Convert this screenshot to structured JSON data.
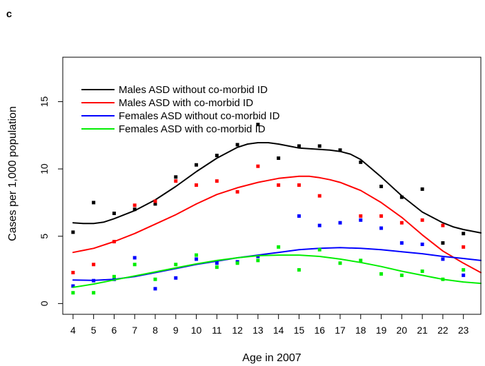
{
  "panel_label": "c",
  "chart_data": {
    "type": "scatter",
    "title": "",
    "xlabel": "Age in 2007",
    "ylabel": "Cases per 1,000 population",
    "x": [
      4,
      5,
      6,
      7,
      8,
      9,
      10,
      11,
      12,
      13,
      14,
      15,
      16,
      17,
      18,
      19,
      20,
      21,
      22,
      23
    ],
    "x_tick_labels": [
      "4",
      "5",
      "6",
      "7",
      "8",
      "9",
      "10",
      "11",
      "12",
      "13",
      "14",
      "15",
      "16",
      "17",
      "18",
      "19",
      "20",
      "21",
      "22",
      "23"
    ],
    "y_ticks": [
      0,
      5,
      10,
      15
    ],
    "y_tick_labels": [
      "0",
      "5",
      "10",
      "15"
    ],
    "xlim": [
      3.5,
      23.85
    ],
    "ylim": [
      -0.8,
      18.3
    ],
    "legend_position": "top-left",
    "grid": false,
    "series": [
      {
        "name": "Males ASD without co-morbid ID",
        "color": "#000000",
        "points": [
          5.3,
          7.5,
          6.7,
          7.0,
          7.4,
          9.4,
          10.3,
          11.0,
          11.8,
          13.3,
          10.8,
          11.7,
          11.7,
          11.4,
          10.5,
          8.7,
          7.9,
          8.5,
          4.5,
          5.2
        ],
        "smooth_x": [
          4,
          4.5,
          5,
          5.5,
          6,
          7,
          8,
          9,
          10,
          11,
          12,
          12.5,
          13,
          13.5,
          14,
          14.5,
          15,
          15.5,
          16,
          16.5,
          17,
          17.5,
          18,
          19,
          20,
          21,
          22,
          22.5,
          23,
          23.5,
          23.85
        ],
        "smooth_y": [
          6.0,
          5.95,
          5.95,
          6.05,
          6.3,
          6.9,
          7.7,
          8.7,
          9.8,
          10.8,
          11.6,
          11.85,
          11.95,
          11.95,
          11.85,
          11.7,
          11.55,
          11.5,
          11.45,
          11.4,
          11.3,
          11.1,
          10.7,
          9.4,
          8.0,
          6.8,
          6.0,
          5.7,
          5.5,
          5.35,
          5.25
        ]
      },
      {
        "name": "Males ASD with co-morbid ID",
        "color": "#ff0000",
        "points": [
          2.3,
          2.9,
          4.6,
          7.3,
          7.6,
          9.1,
          8.8,
          9.1,
          8.3,
          10.2,
          8.8,
          8.8,
          8.0,
          null,
          6.5,
          6.5,
          6.0,
          6.2,
          5.8,
          4.2
        ],
        "smooth_x": [
          4,
          5,
          6,
          7,
          8,
          9,
          10,
          11,
          12,
          13,
          14,
          15,
          15.5,
          16,
          16.5,
          17,
          18,
          19,
          20,
          21,
          22,
          23,
          23.85
        ],
        "smooth_y": [
          3.8,
          4.1,
          4.6,
          5.2,
          5.9,
          6.6,
          7.4,
          8.1,
          8.6,
          9.0,
          9.3,
          9.45,
          9.45,
          9.35,
          9.2,
          9.0,
          8.4,
          7.5,
          6.4,
          5.1,
          3.9,
          3.0,
          2.3
        ]
      },
      {
        "name": "Females ASD without co-morbid ID",
        "color": "#0000ff",
        "points": [
          1.3,
          1.7,
          1.8,
          3.4,
          1.1,
          1.9,
          3.3,
          3.0,
          3.1,
          3.5,
          null,
          6.5,
          5.8,
          6.0,
          6.2,
          5.6,
          4.5,
          4.4,
          3.3,
          2.1
        ],
        "smooth_x": [
          4,
          5,
          6,
          7,
          8,
          9,
          10,
          11,
          12,
          13,
          14,
          15,
          16,
          17,
          18,
          19,
          20,
          21,
          22,
          23,
          23.85
        ],
        "smooth_y": [
          1.75,
          1.72,
          1.8,
          2.0,
          2.3,
          2.6,
          2.9,
          3.15,
          3.4,
          3.6,
          3.8,
          4.0,
          4.1,
          4.15,
          4.1,
          4.0,
          3.85,
          3.7,
          3.5,
          3.35,
          3.2
        ]
      },
      {
        "name": "Females ASD with co-morbid ID",
        "color": "#00ee00",
        "points": [
          0.8,
          0.8,
          2.0,
          2.9,
          1.8,
          2.9,
          3.6,
          2.7,
          3.0,
          3.2,
          4.2,
          2.5,
          4.0,
          3.0,
          3.2,
          2.2,
          2.1,
          2.4,
          1.8,
          2.5
        ],
        "smooth_x": [
          4,
          5,
          6,
          7,
          8,
          9,
          10,
          11,
          12,
          13,
          14,
          15,
          16,
          17,
          18,
          19,
          20,
          21,
          22,
          23,
          23.85
        ],
        "smooth_y": [
          1.2,
          1.45,
          1.75,
          2.05,
          2.35,
          2.65,
          2.95,
          3.2,
          3.4,
          3.55,
          3.6,
          3.6,
          3.5,
          3.3,
          3.05,
          2.75,
          2.4,
          2.1,
          1.8,
          1.6,
          1.5
        ]
      }
    ]
  }
}
